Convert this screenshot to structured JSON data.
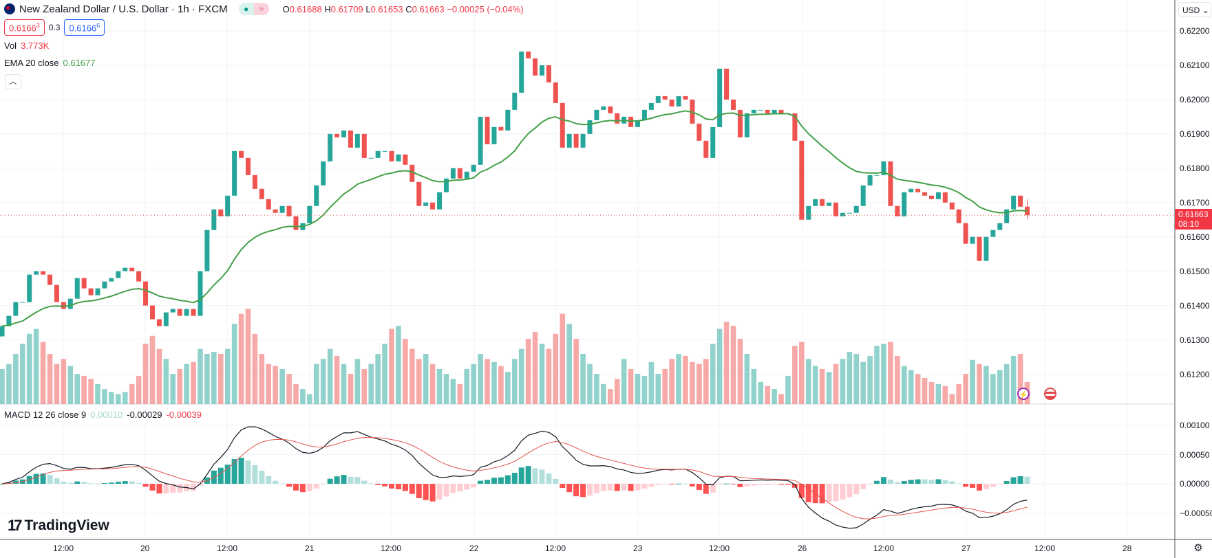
{
  "header": {
    "title": "New Zealand Dollar / U.S. Dollar · 1h · FXCM",
    "market_status_icon": "market-open-dot",
    "delay_icon": "≈",
    "ohlc": {
      "o_label": "O",
      "o": "0.61688",
      "h_label": "H",
      "h": "0.61709",
      "l_label": "L",
      "l": "0.61653",
      "c_label": "C",
      "c": "0.61663",
      "change": "−0.00025 (−0.04%)"
    }
  },
  "trade": {
    "sell_main": "0.6166",
    "sell_sup": "3",
    "spread": "0.3",
    "buy_main": "0.6166",
    "buy_sup": "6"
  },
  "volume_legend": {
    "label": "Vol",
    "value": "3.773K"
  },
  "ema_legend": {
    "label": "EMA 20 close",
    "value": "0.61677"
  },
  "collapse_icon": "chevron-up",
  "macd_legend": {
    "label": "MACD 12 26 close 9",
    "hist": "0.00010",
    "macd": "-0.00029",
    "signal": "-0.00039"
  },
  "price_axis": {
    "currency": "USD",
    "ticks": [
      "0.62200",
      "0.62100",
      "0.62000",
      "0.61900",
      "0.61800",
      "0.61700",
      "0.61600",
      "0.61500",
      "0.61400",
      "0.61300",
      "0.61200"
    ],
    "current_price": "0.61663",
    "countdown": "08:10"
  },
  "macd_axis": {
    "ticks": [
      "0.00100",
      "0.00050",
      "0.00000",
      "−0.00050"
    ]
  },
  "time_axis": {
    "labels": [
      "12:00",
      "20",
      "12:00",
      "21",
      "12:00",
      "22",
      "12:00",
      "23",
      "12:00",
      "26",
      "12:00",
      "27",
      "12:00",
      "28"
    ]
  },
  "logo": "TradingView",
  "colors": {
    "up": "#26a69a",
    "down": "#ef5350",
    "ema": "#43a047",
    "macd": "#131722",
    "signal": "#e5534b",
    "grid": "#f0f3fa"
  },
  "chart_data": {
    "type": "candlestick",
    "symbol": "NZDUSD",
    "interval": "1h",
    "first_open": 0.6131,
    "last_candle": {
      "open": 0.61688,
      "high": 0.61709,
      "low": 0.61653,
      "close": 0.61663
    },
    "closes": [
      0.6134,
      0.6137,
      0.6141,
      0.6141,
      0.6149,
      0.615,
      0.6149,
      0.6146,
      0.6141,
      0.6139,
      0.6142,
      0.6148,
      0.6145,
      0.6143,
      0.6145,
      0.6147,
      0.6148,
      0.615,
      0.6151,
      0.615,
      0.6147,
      0.614,
      0.6136,
      0.6134,
      0.6138,
      0.6139,
      0.6137,
      0.6139,
      0.6137,
      0.615,
      0.6162,
      0.6168,
      0.6166,
      0.6172,
      0.6185,
      0.6183,
      0.6178,
      0.6174,
      0.6171,
      0.6168,
      0.6167,
      0.6169,
      0.6166,
      0.6162,
      0.6164,
      0.6169,
      0.6175,
      0.6182,
      0.619,
      0.6189,
      0.6191,
      0.6186,
      0.619,
      0.6183,
      0.6183,
      0.6185,
      0.6185,
      0.6182,
      0.6184,
      0.6181,
      0.6176,
      0.6169,
      0.617,
      0.6168,
      0.6173,
      0.6177,
      0.618,
      0.6177,
      0.6179,
      0.6181,
      0.6195,
      0.6187,
      0.6192,
      0.6191,
      0.6197,
      0.6202,
      0.6214,
      0.6212,
      0.6207,
      0.621,
      0.6205,
      0.6199,
      0.6186,
      0.619,
      0.6186,
      0.619,
      0.6194,
      0.6197,
      0.6198,
      0.6196,
      0.6193,
      0.6195,
      0.6192,
      0.6194,
      0.6197,
      0.6199,
      0.6201,
      0.62,
      0.6198,
      0.6201,
      0.62,
      0.6193,
      0.6188,
      0.6183,
      0.6192,
      0.6209,
      0.62,
      0.6197,
      0.6189,
      0.6196,
      0.6197,
      0.6197,
      0.6196,
      0.6197,
      0.6196,
      0.6196,
      0.6188,
      0.6165,
      0.6169,
      0.6171,
      0.6169,
      0.617,
      0.6166,
      0.6167,
      0.6167,
      0.6169,
      0.6175,
      0.6178,
      0.6178,
      0.6182,
      0.6169,
      0.6166,
      0.6173,
      0.6174,
      0.6173,
      0.6172,
      0.6171,
      0.6173,
      0.617,
      0.6168,
      0.6164,
      0.6158,
      0.616,
      0.6153,
      0.616,
      0.6162,
      0.6164,
      0.6168,
      0.6172,
      0.61688,
      0.61663
    ],
    "volumes": [
      35,
      40,
      50,
      60,
      70,
      75,
      62,
      50,
      40,
      45,
      38,
      30,
      28,
      25,
      20,
      15,
      12,
      10,
      12,
      20,
      28,
      60,
      68,
      55,
      45,
      30,
      35,
      40,
      42,
      55,
      50,
      52,
      50,
      55,
      80,
      90,
      95,
      70,
      50,
      40,
      38,
      35,
      30,
      20,
      15,
      10,
      40,
      45,
      55,
      48,
      40,
      30,
      45,
      35,
      40,
      50,
      60,
      75,
      78,
      65,
      55,
      45,
      50,
      40,
      35,
      30,
      25,
      20,
      35,
      40,
      50,
      45,
      42,
      38,
      32,
      45,
      55,
      65,
      72,
      60,
      55,
      70,
      90,
      80,
      65,
      50,
      40,
      30,
      20,
      15,
      25,
      45,
      35,
      30,
      28,
      42,
      30,
      35,
      45,
      50,
      48,
      42,
      40,
      45,
      60,
      75,
      82,
      78,
      65,
      50,
      35,
      22,
      18,
      15,
      10,
      28,
      58,
      62,
      45,
      38,
      35,
      32,
      40,
      45,
      52,
      50,
      42,
      48,
      58,
      60,
      62,
      48,
      38,
      34,
      30,
      26,
      22,
      20,
      18,
      10,
      20,
      30,
      44,
      40,
      38,
      30,
      34,
      40,
      48,
      50,
      22
    ],
    "indicators": [
      "Vol",
      "EMA 20 close",
      "MACD 12 26 close 9"
    ],
    "price_range": [
      0.6115,
      0.6225
    ],
    "macd_range": [
      -0.0008,
      0.0013
    ]
  }
}
